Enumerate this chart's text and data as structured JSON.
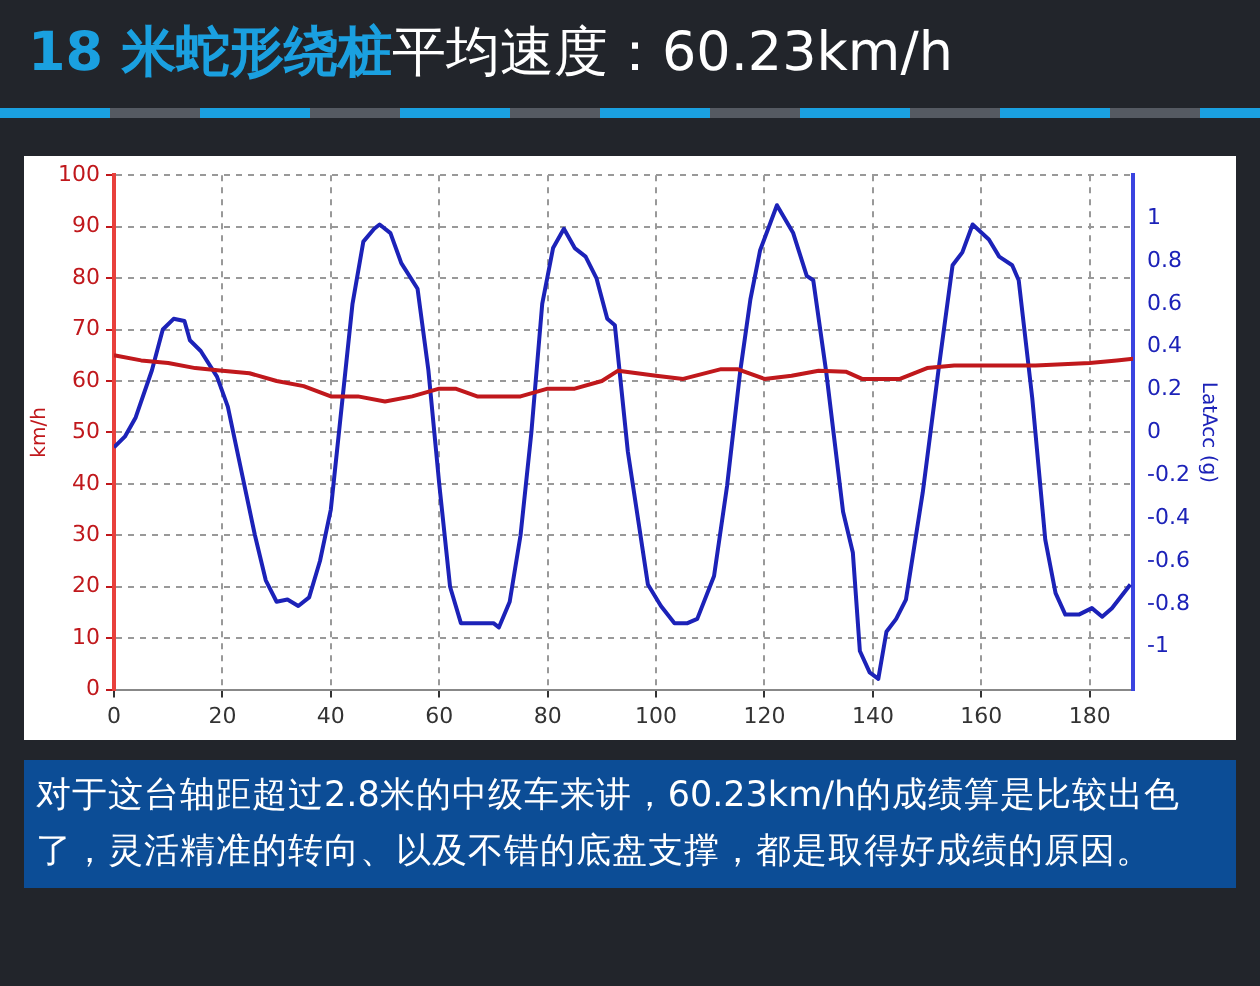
{
  "chart_data": {
    "type": "line",
    "title": "18 米蛇形绕桩",
    "subtitle": "平均速度：60.23km/h",
    "ylabel": "km/h",
    "y2label": "LatAcc (g)",
    "xlim": [
      0,
      188
    ],
    "xticks": [
      0,
      20,
      40,
      60,
      80,
      100,
      120,
      140,
      160,
      180
    ],
    "ylim": [
      0,
      100
    ],
    "yticks": [
      0,
      10,
      20,
      30,
      40,
      50,
      60,
      70,
      80,
      90,
      100
    ],
    "y2lim": [
      -1.2,
      1.2
    ],
    "y2ticks": [
      -1,
      -0.8,
      -0.6,
      -0.4,
      -0.2,
      0,
      0.2,
      0.4,
      0.6,
      0.8,
      1
    ],
    "grid": true,
    "legend": false,
    "marker": "none",
    "line_style": "solid",
    "series": [
      {
        "color": "#c0181c",
        "x": [
          0,
          5,
          10,
          15,
          20,
          25,
          30,
          35,
          40,
          45,
          50,
          55,
          60,
          63,
          67,
          70,
          75,
          80,
          85,
          90,
          93,
          100,
          105,
          112,
          115,
          120,
          125,
          130,
          135,
          138,
          145,
          150,
          155,
          160,
          170,
          180,
          185,
          188
        ],
        "values": [
          65,
          64,
          63.5,
          62.5,
          62,
          61.5,
          60,
          59,
          57,
          57,
          56,
          57,
          58.5,
          58.5,
          57,
          57,
          57,
          58.5,
          58.5,
          60,
          62,
          61,
          60.4,
          62.3,
          62.3,
          60.4,
          61,
          62,
          61.8,
          60.4,
          60.4,
          62.5,
          63,
          63,
          63,
          63.5,
          64,
          64.3
        ]
      },
      {
        "color": "#1c22b8",
        "axis": "y2",
        "x": [
          0,
          2,
          4,
          7,
          9,
          11,
          13,
          14,
          16,
          19,
          21,
          23,
          26,
          28,
          30,
          32,
          34,
          36,
          38,
          40,
          42,
          44,
          46,
          48,
          49,
          51,
          53,
          56,
          58,
          60,
          62,
          64,
          66,
          70,
          71,
          73,
          75,
          77,
          79,
          81,
          83,
          85,
          87,
          89,
          91,
          92.4,
          94.8,
          98.5,
          100.9,
          103.4,
          105.8,
          107.6,
          110.7,
          113.1,
          115.5,
          117.4,
          119.2,
          122.3,
          125.3,
          127.8,
          129,
          131.4,
          134.5,
          136.3,
          137.6,
          139.4,
          141,
          142.5,
          144.3,
          146.1,
          149.2,
          152.2,
          154.7,
          156.5,
          158.4,
          161.4,
          163.3,
          165.7,
          166.9,
          169.4,
          171.8,
          173.7,
          175.5,
          178,
          180.4,
          182.3,
          184.1,
          187.5
        ],
        "values": [
          -0.07,
          -0.02,
          0.07,
          0.29,
          0.48,
          0.53,
          0.52,
          0.43,
          0.38,
          0.26,
          0.12,
          -0.12,
          -0.48,
          -0.69,
          -0.79,
          -0.78,
          -0.81,
          -0.77,
          -0.6,
          -0.36,
          0.12,
          0.6,
          0.89,
          0.95,
          0.97,
          0.93,
          0.79,
          0.67,
          0.29,
          -0.24,
          -0.72,
          -0.89,
          -0.89,
          -0.89,
          -0.91,
          -0.79,
          -0.48,
          0,
          0.6,
          0.86,
          0.95,
          0.86,
          0.82,
          0.72,
          0.53,
          0.5,
          -0.09,
          -0.71,
          -0.81,
          -0.89,
          -0.89,
          -0.87,
          -0.67,
          -0.25,
          0.28,
          0.62,
          0.85,
          1.06,
          0.93,
          0.73,
          0.71,
          0.28,
          -0.37,
          -0.56,
          -1.02,
          -1.12,
          -1.15,
          -0.93,
          -0.87,
          -0.78,
          -0.28,
          0.31,
          0.78,
          0.84,
          0.97,
          0.9,
          0.82,
          0.78,
          0.71,
          0.16,
          -0.5,
          -0.75,
          -0.85,
          -0.85,
          -0.82,
          -0.86,
          -0.82,
          -0.71
        ]
      }
    ],
    "annotations": [
      "对于这台轴距超过2.8米的中级车来讲，60.23km/h的成绩算是比较出色了，灵活精准的转向、以及不错的底盘支撑，都是取得好成绩的原因。"
    ]
  }
}
